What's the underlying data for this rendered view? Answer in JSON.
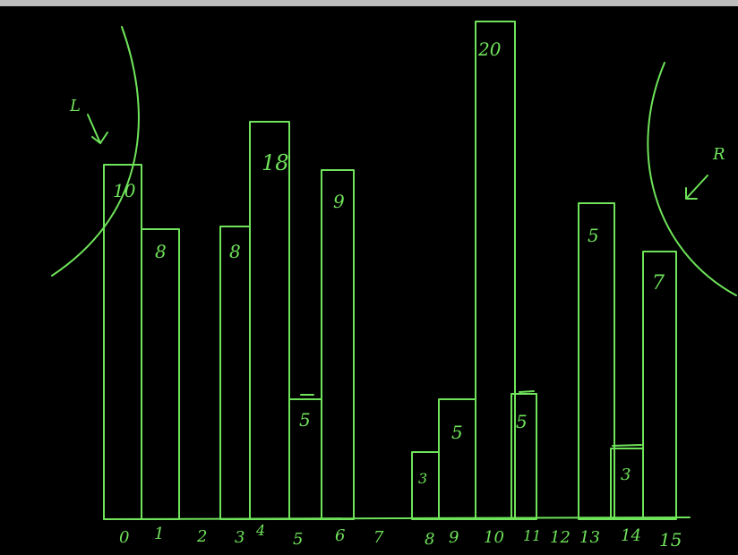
{
  "ink_color": "#6fe35a",
  "background": "#000000",
  "diagram": {
    "tick_labels": [
      "0",
      "1",
      "2",
      "3",
      "4",
      "5",
      "6",
      "7",
      "8",
      "9",
      "10",
      "11",
      "12",
      "13",
      "14",
      "15"
    ],
    "bars": [
      {
        "index": 0,
        "label": "10"
      },
      {
        "index": 1,
        "label": "8"
      },
      {
        "index": 3,
        "label": "8"
      },
      {
        "index": 4,
        "label": "18"
      },
      {
        "index": 5,
        "label": "5"
      },
      {
        "index": 6,
        "label": "9"
      },
      {
        "index": 8,
        "label": "3"
      },
      {
        "index": 9,
        "label": "5"
      },
      {
        "index": 10,
        "label": "20"
      },
      {
        "index": 11,
        "label": "5"
      },
      {
        "index": 13,
        "label": "5"
      },
      {
        "index": 14,
        "label": "3"
      },
      {
        "index": 15,
        "label": "7"
      }
    ],
    "annotation_left": "L",
    "annotation_right": "R"
  }
}
